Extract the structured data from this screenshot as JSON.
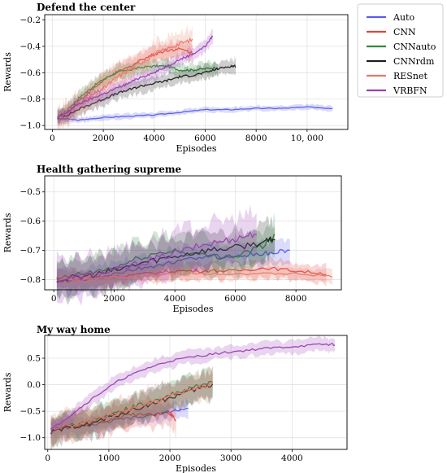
{
  "colors": {
    "Auto": "#5b5bef",
    "CNN": "#e0443f",
    "CNNauto": "#2e8b3a",
    "CNNrdm": "#1e1e1e",
    "RESnet": "#e87a6a",
    "VRBFN": "#9a3fb5"
  },
  "legend": {
    "placement": "top-right outside",
    "entries": [
      "Auto",
      "CNN",
      "CNNauto",
      "CNNrdm",
      "RESnet",
      "VRBFN"
    ]
  },
  "chart_data": [
    {
      "type": "line",
      "title": "Defend the center",
      "xlabel": "Episodes",
      "ylabel": "Rewards",
      "xlim": [
        -300,
        11600
      ],
      "ylim": [
        -1.03,
        -0.16
      ],
      "xticks": [
        0,
        2000,
        4000,
        6000,
        8000,
        10000
      ],
      "xtick_labels": [
        "0",
        "2000",
        "4000",
        "6000",
        "8000",
        "10, 000"
      ],
      "yticks": [
        -1.0,
        -0.8,
        -0.6,
        -0.4,
        -0.2
      ],
      "ytick_labels": [
        "−1.0",
        "−0.8",
        "−0.6",
        "−0.4",
        "−0.2"
      ],
      "grid": true,
      "series": [
        {
          "name": "Auto",
          "x": [
            200,
            600,
            1000,
            1500,
            2000,
            3000,
            4000,
            5000,
            6000,
            7000,
            8000,
            9000,
            10000,
            11000
          ],
          "y": [
            -0.95,
            -0.95,
            -0.96,
            -0.95,
            -0.94,
            -0.93,
            -0.92,
            -0.9,
            -0.88,
            -0.88,
            -0.87,
            -0.87,
            -0.86,
            -0.87
          ],
          "band": 0.02
        },
        {
          "name": "CNN",
          "x": [
            200,
            600,
            1000,
            1500,
            2000,
            2500,
            3000,
            3500,
            4000,
            4500,
            5000,
            5500
          ],
          "y": [
            -0.94,
            -0.9,
            -0.82,
            -0.74,
            -0.66,
            -0.6,
            -0.56,
            -0.5,
            -0.46,
            -0.43,
            -0.42,
            -0.45
          ],
          "band": 0.06
        },
        {
          "name": "CNNauto",
          "x": [
            200,
            600,
            1000,
            1500,
            2000,
            2500,
            3000,
            3500,
            4000,
            4500,
            5000,
            5500,
            6000,
            6500
          ],
          "y": [
            -0.94,
            -0.88,
            -0.8,
            -0.72,
            -0.65,
            -0.6,
            -0.58,
            -0.56,
            -0.55,
            -0.55,
            -0.58,
            -0.58,
            -0.57,
            -0.56
          ],
          "band": 0.05
        },
        {
          "name": "CNNrdm",
          "x": [
            200,
            600,
            1000,
            1500,
            2000,
            2500,
            3000,
            3500,
            4000,
            4500,
            5000,
            5500,
            6000,
            6500,
            7000,
            7200
          ],
          "y": [
            -0.94,
            -0.92,
            -0.88,
            -0.84,
            -0.8,
            -0.76,
            -0.73,
            -0.7,
            -0.68,
            -0.66,
            -0.63,
            -0.62,
            -0.6,
            -0.57,
            -0.55,
            -0.55
          ],
          "band": 0.05
        },
        {
          "name": "RESnet",
          "x": [
            200,
            600,
            1000,
            1500,
            2000,
            2500,
            3000,
            3500,
            4000,
            4500,
            5000,
            5500
          ],
          "y": [
            -0.94,
            -0.9,
            -0.84,
            -0.78,
            -0.72,
            -0.64,
            -0.58,
            -0.52,
            -0.46,
            -0.42,
            -0.38,
            -0.35
          ],
          "band": 0.09
        },
        {
          "name": "VRBFN",
          "x": [
            200,
            600,
            1000,
            1500,
            2000,
            2500,
            3000,
            3500,
            4000,
            4500,
            5000,
            5500,
            6000,
            6300
          ],
          "y": [
            -0.94,
            -0.9,
            -0.84,
            -0.8,
            -0.76,
            -0.72,
            -0.68,
            -0.63,
            -0.6,
            -0.55,
            -0.5,
            -0.46,
            -0.4,
            -0.32
          ],
          "band": 0.05
        }
      ]
    },
    {
      "type": "line",
      "title": "Health gathering supreme",
      "xlabel": "Episodes",
      "ylabel": "Rewards",
      "xlim": [
        -300,
        9500
      ],
      "ylim": [
        -0.835,
        -0.445
      ],
      "xticks": [
        0,
        2000,
        4000,
        6000,
        8000
      ],
      "xtick_labels": [
        "0",
        "2000",
        "4000",
        "6000",
        "8000"
      ],
      "yticks": [
        -0.8,
        -0.7,
        -0.6,
        -0.5
      ],
      "ytick_labels": [
        "−0.8",
        "−0.7",
        "−0.6",
        "−0.5"
      ],
      "grid": true,
      "series": [
        {
          "name": "Auto",
          "x": [
            100,
            1000,
            2000,
            3000,
            4000,
            5000,
            6000,
            7000,
            7800
          ],
          "y": [
            -0.81,
            -0.8,
            -0.78,
            -0.76,
            -0.74,
            -0.72,
            -0.72,
            -0.71,
            -0.7
          ],
          "band": 0.04
        },
        {
          "name": "CNN",
          "x": [
            100,
            1000,
            2000,
            3000,
            4000,
            5000,
            6000,
            7000,
            8000,
            9000
          ],
          "y": [
            -0.8,
            -0.8,
            -0.79,
            -0.78,
            -0.77,
            -0.77,
            -0.77,
            -0.76,
            -0.77,
            -0.78
          ],
          "band": 0.03
        },
        {
          "name": "CNNauto",
          "x": [
            100,
            1000,
            2000,
            3000,
            4000,
            5000,
            6000,
            7000,
            7300
          ],
          "y": [
            -0.8,
            -0.78,
            -0.76,
            -0.72,
            -0.7,
            -0.72,
            -0.72,
            -0.68,
            -0.65
          ],
          "band": 0.06
        },
        {
          "name": "CNNrdm",
          "x": [
            100,
            1000,
            2000,
            3000,
            4000,
            5000,
            6000,
            7000,
            7300
          ],
          "y": [
            -0.8,
            -0.79,
            -0.77,
            -0.74,
            -0.72,
            -0.7,
            -0.69,
            -0.67,
            -0.66
          ],
          "band": 0.06
        },
        {
          "name": "RESnet",
          "x": [
            100,
            1000,
            2000,
            3000,
            4000,
            5000,
            6000,
            7000,
            8000,
            9200
          ],
          "y": [
            -0.8,
            -0.8,
            -0.79,
            -0.79,
            -0.78,
            -0.78,
            -0.78,
            -0.78,
            -0.78,
            -0.79
          ],
          "band": 0.02
        },
        {
          "name": "VRBFN",
          "x": [
            100,
            1000,
            2000,
            3000,
            4000,
            5000,
            6000,
            6700
          ],
          "y": [
            -0.8,
            -0.79,
            -0.77,
            -0.74,
            -0.71,
            -0.68,
            -0.66,
            -0.64
          ],
          "band": 0.07
        }
      ]
    },
    {
      "type": "line",
      "title": "My way home",
      "xlabel": "Episodes",
      "ylabel": "Rewards",
      "xlim": [
        -50,
        4900
      ],
      "ylim": [
        -1.22,
        0.93
      ],
      "xticks": [
        0,
        1000,
        2000,
        3000,
        4000
      ],
      "xtick_labels": [
        "0",
        "1000",
        "2000",
        "3000",
        "4000"
      ],
      "yticks": [
        -1.0,
        -0.5,
        0.0,
        0.5
      ],
      "ytick_labels": [
        "−1.0",
        "−0.5",
        "0.0",
        "0.5"
      ],
      "grid": true,
      "series": [
        {
          "name": "Auto",
          "x": [
            50,
            400,
            800,
            1200,
            1600,
            2000,
            2300
          ],
          "y": [
            -0.85,
            -0.8,
            -0.75,
            -0.65,
            -0.6,
            -0.5,
            -0.45
          ],
          "band": 0.15
        },
        {
          "name": "CNN",
          "x": [
            50,
            400,
            800,
            1200,
            1600,
            2000,
            2100
          ],
          "y": [
            -0.85,
            -0.8,
            -0.7,
            -0.6,
            -0.55,
            -0.55,
            -0.65
          ],
          "band": 0.25
        },
        {
          "name": "CNNauto",
          "x": [
            50,
            400,
            800,
            1200,
            1600,
            2000,
            2400,
            2700
          ],
          "y": [
            -0.85,
            -0.75,
            -0.62,
            -0.5,
            -0.35,
            -0.2,
            -0.05,
            0.05
          ],
          "band": 0.25
        },
        {
          "name": "CNNrdm",
          "x": [
            50,
            400,
            800,
            1200,
            1600,
            2000,
            2400,
            2700
          ],
          "y": [
            -0.9,
            -0.8,
            -0.7,
            -0.55,
            -0.4,
            -0.25,
            -0.1,
            0.0
          ],
          "band": 0.25
        },
        {
          "name": "RESnet",
          "x": [
            50,
            400,
            800,
            1200,
            1600,
            2000,
            2400,
            2700
          ],
          "y": [
            -0.85,
            -0.75,
            -0.65,
            -0.52,
            -0.38,
            -0.22,
            -0.08,
            0.02
          ],
          "band": 0.25
        },
        {
          "name": "VRBFN",
          "x": [
            50,
            400,
            800,
            1200,
            1600,
            2000,
            2500,
            3000,
            3500,
            4000,
            4500,
            4700
          ],
          "y": [
            -0.85,
            -0.55,
            -0.2,
            0.1,
            0.3,
            0.45,
            0.55,
            0.62,
            0.68,
            0.72,
            0.76,
            0.76
          ],
          "band": 0.12
        }
      ]
    }
  ]
}
